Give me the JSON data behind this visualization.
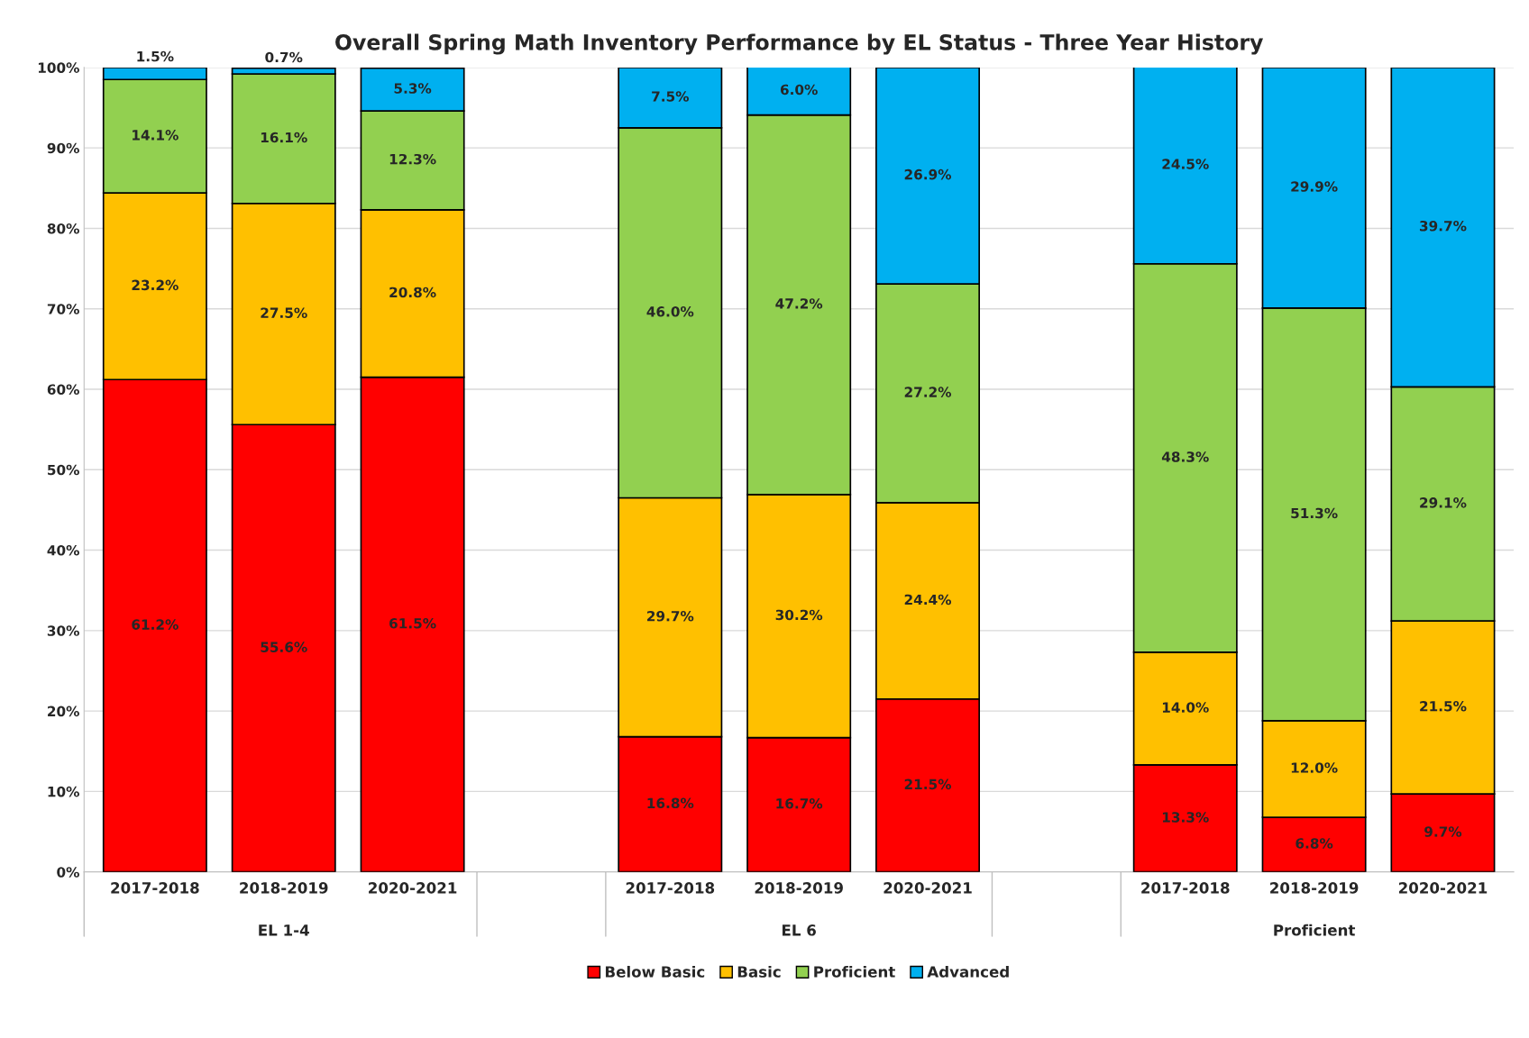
{
  "chart_data": {
    "type": "bar",
    "stacked": true,
    "title": "Overall Spring Math Inventory Performance by EL Status - Three Year History",
    "categories": [
      "2017-2018",
      "2018-2019",
      "2020-2021",
      null,
      "2017-2018",
      "2018-2019",
      "2020-2021",
      null,
      "2017-2018",
      "2018-2019",
      "2020-2021"
    ],
    "annotations": [
      "EL 1-4",
      "EL 6",
      "Proficient"
    ],
    "series": [
      {
        "name": "Below Basic",
        "color": "#ff0000",
        "values": [
          61.2,
          55.6,
          61.5,
          null,
          16.8,
          16.7,
          21.5,
          null,
          13.3,
          6.8,
          9.7
        ],
        "value_labels": [
          "61.2%",
          "55.6%",
          "61.5%",
          null,
          "16.8%",
          "16.7%",
          "21.5%",
          null,
          "13.3%",
          "6.8%",
          "9.7%"
        ]
      },
      {
        "name": "Basic",
        "color": "#ffc000",
        "values": [
          23.2,
          27.5,
          20.8,
          null,
          29.7,
          30.2,
          24.4,
          null,
          14.0,
          12.0,
          21.5
        ],
        "value_labels": [
          "23.2%",
          "27.5%",
          "20.8%",
          null,
          "29.7%",
          "30.2%",
          "24.4%",
          null,
          "14.0%",
          "12.0%",
          "21.5%"
        ]
      },
      {
        "name": "Proficient",
        "color": "#92d050",
        "values": [
          14.1,
          16.1,
          12.3,
          null,
          46.0,
          47.2,
          27.2,
          null,
          48.3,
          51.3,
          29.1
        ],
        "value_labels": [
          "14.1%",
          "16.1%",
          "12.3%",
          null,
          "46.0%",
          "47.2%",
          "27.2%",
          null,
          "48.3%",
          "51.3%",
          "29.1%"
        ]
      },
      {
        "name": "Advanced",
        "color": "#00b0f0",
        "values": [
          1.5,
          0.7,
          5.3,
          null,
          7.5,
          6.0,
          26.9,
          null,
          24.5,
          29.9,
          39.7
        ],
        "value_labels": [
          "1.5%",
          "0.7%",
          "5.3%",
          null,
          "7.5%",
          "6.0%",
          "26.9%",
          null,
          "24.5%",
          "29.9%",
          "39.7%"
        ]
      }
    ],
    "ylim": [
      0,
      100
    ],
    "yticks": [
      {
        "value": 0,
        "label": "0%"
      },
      {
        "value": 10,
        "label": "10%"
      },
      {
        "value": 20,
        "label": "20%"
      },
      {
        "value": 30,
        "label": "30%"
      },
      {
        "value": 40,
        "label": "40%"
      },
      {
        "value": 50,
        "label": "50%"
      },
      {
        "value": 60,
        "label": "60%"
      },
      {
        "value": 70,
        "label": "70%"
      },
      {
        "value": 80,
        "label": "80%"
      },
      {
        "value": 90,
        "label": "90%"
      },
      {
        "value": 100,
        "label": "100%"
      }
    ],
    "grid": "y",
    "legend": "bottom"
  }
}
